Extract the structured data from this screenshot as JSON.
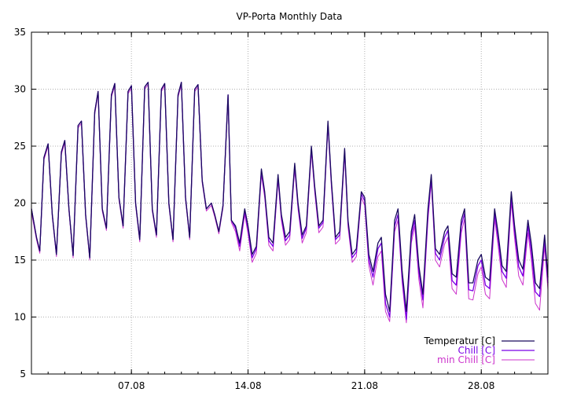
{
  "chart_data": {
    "type": "line",
    "title": "VP-Porta Monthly Data",
    "xlabel": "",
    "ylabel": "",
    "ylim": [
      5,
      35
    ],
    "yticks": [
      5,
      10,
      15,
      20,
      25,
      30,
      35
    ],
    "xlim": [
      1.0,
      32.0
    ],
    "xtick_values": [
      7,
      14,
      21,
      28
    ],
    "xtick_labels": [
      "07.08",
      "14.08",
      "21.08",
      "28.08"
    ],
    "grid": true,
    "legend_position": "bottom-right",
    "series": [
      {
        "name": "Temperatur [C]",
        "color": "#1a0a5e",
        "x": [
          1.0,
          1.3,
          1.5,
          1.75,
          2.0,
          2.25,
          2.5,
          2.8,
          3.0,
          3.25,
          3.5,
          3.8,
          4.0,
          4.25,
          4.5,
          4.8,
          5.0,
          5.25,
          5.5,
          5.8,
          6.0,
          6.25,
          6.5,
          6.8,
          7.0,
          7.25,
          7.5,
          7.8,
          8.0,
          8.25,
          8.5,
          8.8,
          9.0,
          9.25,
          9.5,
          9.8,
          10.0,
          10.25,
          10.5,
          10.8,
          11.0,
          11.25,
          11.5,
          11.8,
          12.0,
          12.25,
          12.5,
          12.8,
          13.0,
          13.25,
          13.5,
          13.8,
          14.0,
          14.25,
          14.5,
          14.8,
          15.0,
          15.25,
          15.5,
          15.8,
          16.0,
          16.25,
          16.5,
          16.8,
          17.0,
          17.25,
          17.5,
          17.8,
          18.0,
          18.25,
          18.5,
          18.8,
          19.0,
          19.25,
          19.5,
          19.8,
          20.0,
          20.25,
          20.5,
          20.8,
          21.0,
          21.25,
          21.5,
          21.8,
          22.0,
          22.25,
          22.5,
          22.8,
          23.0,
          23.25,
          23.5,
          23.8,
          24.0,
          24.25,
          24.5,
          24.8,
          25.0,
          25.25,
          25.5,
          25.8,
          26.0,
          26.25,
          26.5,
          26.8,
          27.0,
          27.25,
          27.5,
          27.8,
          28.0,
          28.25,
          28.5,
          28.8,
          29.0,
          29.25,
          29.5,
          29.8,
          30.0,
          30.25,
          30.5,
          30.8,
          31.0,
          31.25,
          31.5,
          31.8,
          32.0
        ],
        "y": [
          19.5,
          17.0,
          15.8,
          24.0,
          25.2,
          19.0,
          15.5,
          24.5,
          25.5,
          19.5,
          15.4,
          26.8,
          27.2,
          19.0,
          15.2,
          28.0,
          29.8,
          19.5,
          17.8,
          29.5,
          30.5,
          20.5,
          18.0,
          29.8,
          30.3,
          20.0,
          16.8,
          30.2,
          30.6,
          19.5,
          17.2,
          30.0,
          30.5,
          20.0,
          16.8,
          29.5,
          30.6,
          20.5,
          17.0,
          30.0,
          30.4,
          22.0,
          19.5,
          20.0,
          19.0,
          17.5,
          19.8,
          29.5,
          18.5,
          18.0,
          16.5,
          19.5,
          18.0,
          15.5,
          16.2,
          23.0,
          21.0,
          17.0,
          16.5,
          22.5,
          19.0,
          17.0,
          17.5,
          23.5,
          20.0,
          17.2,
          18.0,
          25.0,
          21.5,
          18.0,
          18.5,
          27.2,
          22.0,
          17.0,
          17.5,
          24.8,
          18.5,
          15.5,
          16.0,
          21.0,
          20.5,
          15.5,
          14.0,
          16.5,
          17.0,
          12.0,
          10.5,
          18.5,
          19.5,
          14.0,
          10.5,
          17.5,
          19.0,
          14.5,
          12.0,
          19.5,
          22.5,
          16.0,
          15.5,
          17.5,
          18.0,
          13.8,
          13.5,
          18.5,
          19.5,
          13.0,
          13.0,
          15.0,
          15.5,
          13.5,
          13.2,
          19.5,
          17.5,
          14.5,
          14.0,
          21.0,
          18.0,
          15.0,
          14.2,
          18.5,
          16.5,
          13.0,
          12.5,
          17.2,
          13.5
        ]
      },
      {
        "name": "Chill [C]",
        "color": "#7a00e6",
        "x": [
          1.0,
          1.3,
          1.5,
          1.75,
          2.0,
          2.25,
          2.5,
          2.8,
          3.0,
          3.25,
          3.5,
          3.8,
          4.0,
          4.25,
          4.5,
          4.8,
          5.0,
          5.25,
          5.5,
          5.8,
          6.0,
          6.25,
          6.5,
          6.8,
          7.0,
          7.25,
          7.5,
          7.8,
          8.0,
          8.25,
          8.5,
          8.8,
          9.0,
          9.25,
          9.5,
          9.8,
          10.0,
          10.25,
          10.5,
          10.8,
          11.0,
          11.25,
          11.5,
          11.8,
          12.0,
          12.25,
          12.5,
          12.8,
          13.0,
          13.25,
          13.5,
          13.8,
          14.0,
          14.25,
          14.5,
          14.8,
          15.0,
          15.25,
          15.5,
          15.8,
          16.0,
          16.25,
          16.5,
          16.8,
          17.0,
          17.25,
          17.5,
          17.8,
          18.0,
          18.25,
          18.5,
          18.8,
          19.0,
          19.25,
          19.5,
          19.8,
          20.0,
          20.25,
          20.5,
          20.8,
          21.0,
          21.25,
          21.5,
          21.8,
          22.0,
          22.25,
          22.5,
          22.8,
          23.0,
          23.25,
          23.5,
          23.8,
          24.0,
          24.25,
          24.5,
          24.8,
          25.0,
          25.25,
          25.5,
          25.8,
          26.0,
          26.25,
          26.5,
          26.8,
          27.0,
          27.25,
          27.5,
          27.8,
          28.0,
          28.25,
          28.5,
          28.8,
          29.0,
          29.25,
          29.5,
          29.8,
          30.0,
          30.25,
          30.5,
          30.8,
          31.0,
          31.25,
          31.5,
          31.8,
          32.0
        ],
        "y": [
          19.5,
          17.0,
          15.8,
          24.0,
          25.2,
          19.0,
          15.5,
          24.5,
          25.5,
          19.5,
          15.4,
          26.8,
          27.2,
          19.0,
          15.2,
          28.0,
          29.8,
          19.5,
          17.8,
          29.5,
          30.5,
          20.5,
          18.0,
          29.8,
          30.3,
          20.0,
          16.8,
          30.2,
          30.6,
          19.5,
          17.2,
          30.0,
          30.5,
          20.0,
          16.8,
          29.5,
          30.6,
          20.5,
          17.0,
          30.0,
          30.4,
          22.0,
          19.5,
          20.0,
          19.0,
          17.5,
          19.8,
          29.5,
          18.5,
          17.8,
          16.2,
          19.3,
          17.7,
          15.2,
          16.0,
          22.8,
          20.8,
          16.7,
          16.2,
          22.3,
          18.8,
          16.7,
          17.2,
          23.3,
          19.8,
          16.9,
          17.8,
          24.8,
          21.3,
          17.8,
          18.3,
          27.0,
          21.8,
          16.8,
          17.2,
          24.6,
          18.3,
          15.2,
          15.7,
          20.8,
          20.2,
          15.0,
          13.5,
          16.0,
          16.5,
          11.2,
          10.0,
          18.0,
          19.0,
          13.5,
          9.8,
          17.0,
          18.5,
          14.0,
          11.5,
          19.0,
          22.2,
          15.6,
          15.0,
          17.0,
          17.6,
          13.2,
          12.8,
          18.0,
          19.1,
          12.4,
          12.3,
          14.5,
          15.0,
          12.8,
          12.5,
          19.1,
          17.0,
          14.0,
          13.4,
          20.6,
          17.5,
          14.4,
          13.6,
          18.0,
          15.8,
          12.2,
          11.8,
          16.8,
          13.0
        ]
      },
      {
        "name": "min Chill [C]",
        "color": "#cc33cc",
        "x": [
          1.0,
          1.3,
          1.5,
          1.75,
          2.0,
          2.25,
          2.5,
          2.8,
          3.0,
          3.25,
          3.5,
          3.8,
          4.0,
          4.25,
          4.5,
          4.8,
          5.0,
          5.25,
          5.5,
          5.8,
          6.0,
          6.25,
          6.5,
          6.8,
          7.0,
          7.25,
          7.5,
          7.8,
          8.0,
          8.25,
          8.5,
          8.8,
          9.0,
          9.25,
          9.5,
          9.8,
          10.0,
          10.25,
          10.5,
          10.8,
          11.0,
          11.25,
          11.5,
          11.8,
          12.0,
          12.25,
          12.5,
          12.8,
          13.0,
          13.25,
          13.5,
          13.8,
          14.0,
          14.25,
          14.5,
          14.8,
          15.0,
          15.25,
          15.5,
          15.8,
          16.0,
          16.25,
          16.5,
          16.8,
          17.0,
          17.25,
          17.5,
          17.8,
          18.0,
          18.25,
          18.5,
          18.8,
          19.0,
          19.25,
          19.5,
          19.8,
          20.0,
          20.25,
          20.5,
          20.8,
          21.0,
          21.25,
          21.5,
          21.8,
          22.0,
          22.25,
          22.5,
          22.8,
          23.0,
          23.25,
          23.5,
          23.8,
          24.0,
          24.25,
          24.5,
          24.8,
          25.0,
          25.25,
          25.5,
          25.8,
          26.0,
          26.25,
          26.5,
          26.8,
          27.0,
          27.25,
          27.5,
          27.8,
          28.0,
          28.25,
          28.5,
          28.8,
          29.0,
          29.25,
          29.5,
          29.8,
          30.0,
          30.25,
          30.5,
          30.8,
          31.0,
          31.25,
          31.5,
          31.8,
          32.0
        ],
        "y": [
          19.2,
          16.8,
          15.6,
          23.8,
          25.0,
          18.8,
          15.3,
          24.3,
          25.3,
          19.3,
          15.2,
          26.6,
          27.0,
          18.8,
          15.0,
          27.8,
          29.6,
          19.3,
          17.6,
          29.3,
          30.3,
          20.3,
          17.8,
          29.6,
          30.1,
          19.8,
          16.6,
          30.0,
          30.4,
          19.3,
          17.0,
          29.8,
          30.3,
          19.8,
          16.6,
          29.3,
          30.4,
          20.3,
          16.8,
          29.8,
          30.2,
          21.8,
          19.3,
          19.8,
          18.8,
          17.3,
          19.6,
          29.3,
          18.3,
          17.5,
          15.8,
          19.0,
          17.3,
          14.8,
          15.6,
          22.5,
          20.5,
          16.3,
          15.8,
          22.0,
          18.5,
          16.3,
          16.8,
          23.0,
          19.5,
          16.5,
          17.4,
          24.5,
          21.0,
          17.4,
          17.9,
          26.8,
          21.5,
          16.4,
          16.8,
          24.3,
          17.9,
          14.8,
          15.3,
          20.5,
          19.8,
          14.5,
          12.8,
          15.3,
          15.8,
          10.5,
          9.6,
          17.5,
          18.5,
          13.0,
          9.5,
          16.5,
          18.0,
          13.3,
          10.8,
          18.5,
          21.9,
          15.0,
          14.4,
          16.4,
          17.0,
          12.5,
          12.0,
          17.4,
          18.6,
          11.6,
          11.5,
          13.8,
          14.4,
          12.0,
          11.6,
          18.6,
          16.4,
          13.3,
          12.6,
          20.1,
          16.9,
          13.6,
          12.8,
          17.4,
          15.1,
          11.2,
          10.6,
          16.2,
          12.4
        ]
      }
    ]
  }
}
